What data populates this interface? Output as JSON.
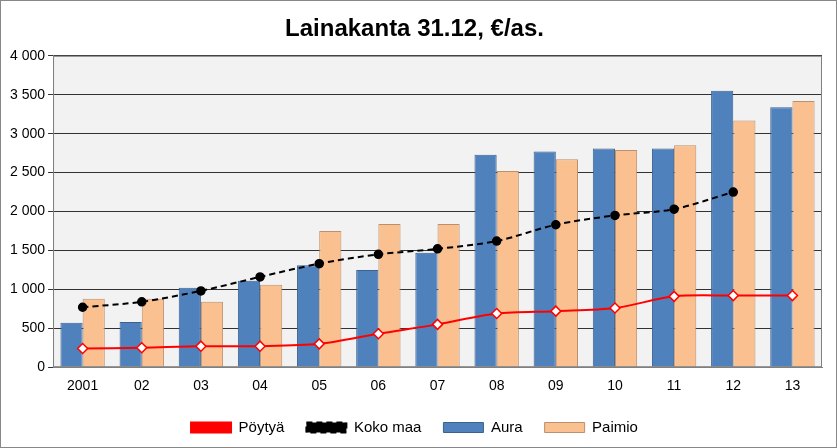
{
  "chart_data": {
    "type": "bar",
    "title": "Lainakanta 31.12, €/as.",
    "categories": [
      "2001",
      "02",
      "03",
      "04",
      "05",
      "06",
      "07",
      "08",
      "09",
      "10",
      "11",
      "12",
      "13"
    ],
    "series": [
      {
        "name": "Aura",
        "type": "bar",
        "color": "#4f81bd",
        "values": [
          570,
          580,
          1020,
          1110,
          1310,
          1250,
          1470,
          2730,
          2770,
          2810,
          2810,
          3550,
          3340
        ]
      },
      {
        "name": "Paimio",
        "type": "bar",
        "color": "#fac090",
        "values": [
          880,
          880,
          840,
          1060,
          1750,
          1840,
          1840,
          2520,
          2670,
          2790,
          2850,
          3170,
          3420
        ]
      },
      {
        "name": "Pöytyä",
        "type": "line",
        "color": "#ff0000",
        "marker": "diamond",
        "line_style": "solid",
        "values": [
          240,
          250,
          270,
          270,
          300,
          430,
          550,
          690,
          720,
          760,
          910,
          920,
          920
        ]
      },
      {
        "name": "Koko maa",
        "type": "line",
        "color": "#000000",
        "marker": "circle",
        "line_style": "dashed",
        "values": [
          770,
          840,
          980,
          1160,
          1330,
          1450,
          1520,
          1620,
          1830,
          1950,
          2030,
          2250,
          null
        ]
      }
    ],
    "ylim": [
      0,
      4000
    ],
    "yticks": [
      0,
      500,
      {
        "value": 1000,
        "label": "1 000"
      },
      {
        "value": 1500,
        "label": "1 500"
      },
      {
        "value": 2000,
        "label": "2 000"
      },
      {
        "value": 2500,
        "label": "2 500"
      },
      {
        "value": 3000,
        "label": "3 000"
      },
      {
        "value": 3500,
        "label": "3 500"
      },
      {
        "value": 4000,
        "label": "4 000"
      }
    ],
    "grid": true,
    "legend": "bottom"
  }
}
